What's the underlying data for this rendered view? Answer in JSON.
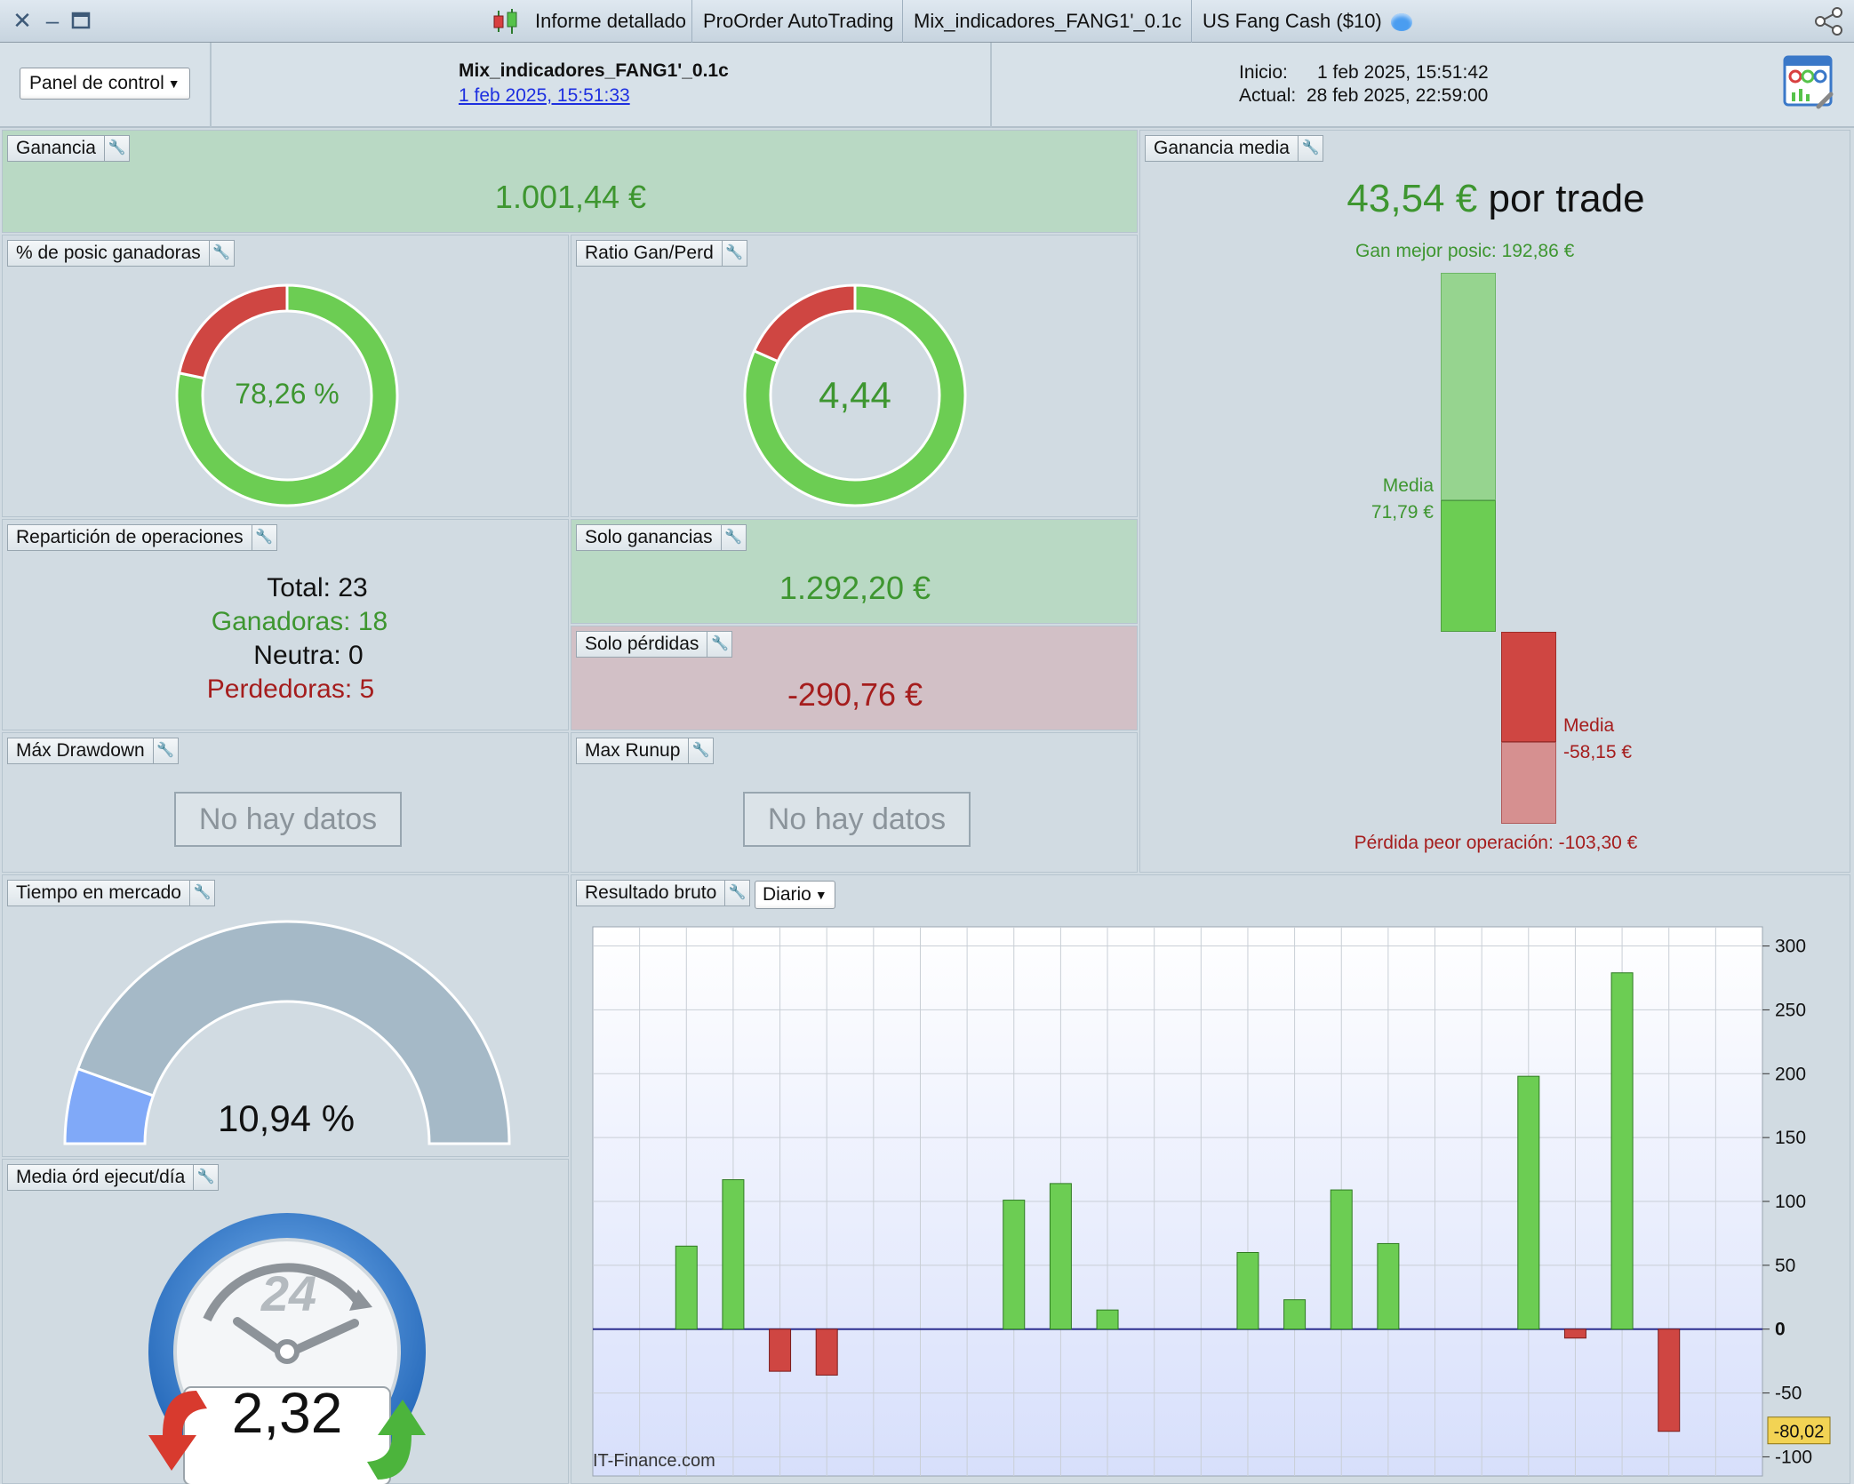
{
  "titlebar": {
    "tabs": [
      "Informe detallado",
      "ProOrder AutoTrading",
      "Mix_indicadores_FANG1'_0.1c",
      "US Fang Cash ($10)"
    ]
  },
  "header": {
    "panel_select": "Panel de control",
    "strategy_name": "Mix_indicadores_FANG1'_0.1c",
    "strategy_date": "1 feb 2025, 15:51:33",
    "inicio_label": "Inicio:",
    "inicio_value": "1 feb 2025, 15:51:42",
    "actual_label": "Actual:",
    "actual_value": "28 feb 2025, 22:59:00"
  },
  "ganancia": {
    "title": "Ganancia",
    "value": "1.001,44 €"
  },
  "pct_ganadoras": {
    "title": "% de posic ganadoras",
    "value": "78,26 %",
    "fraction": 0.7826
  },
  "ratio": {
    "title": "Ratio Gan/Perd",
    "value": "4,44",
    "fraction": 0.8163
  },
  "reparticion": {
    "title": "Repartición de operaciones",
    "total": "Total: 23",
    "ganadoras": "Ganadoras: 18",
    "neutra": "Neutra: 0",
    "perdedoras": "Perdedoras: 5"
  },
  "solo_ganancias": {
    "title": "Solo ganancias",
    "value": "1.292,20 €"
  },
  "solo_perdidas": {
    "title": "Solo pérdidas",
    "value": "-290,76 €"
  },
  "max_drawdown": {
    "title": "Máx Drawdown",
    "value": "No hay datos"
  },
  "max_runup": {
    "title": "Max Runup",
    "value": "No hay datos"
  },
  "ganancia_media": {
    "title": "Ganancia media",
    "value": "43,54 €",
    "suffix": "por trade",
    "best_label": "Gan mejor posic: 192,86 €",
    "media_pos_label": "Media",
    "media_pos_value": "71,79 €",
    "media_neg_label": "Media",
    "media_neg_value": "-58,15 €",
    "worst_label": "Pérdida peor operación: -103,30 €",
    "best": 192.86,
    "avg_win": 71.79,
    "avg_loss": -58.15,
    "worst": -103.3
  },
  "tiempo": {
    "title": "Tiempo en mercado",
    "value": "10,94 %",
    "fraction": 0.1094
  },
  "media_ord": {
    "title": "Media órd ejecut/día",
    "value": "2,32",
    "dial_label": "24"
  },
  "resultado": {
    "title": "Resultado bruto",
    "period": "Diario",
    "watermark": "IT-Finance.com",
    "last_label": "-80,02"
  },
  "chart_data": {
    "type": "bar",
    "title": "Resultado bruto",
    "ylim": [
      -115,
      315
    ],
    "yticks": [
      300,
      250,
      200,
      150,
      100,
      50,
      0,
      -50,
      -100
    ],
    "ytick_labels": [
      "300",
      "250",
      "200",
      "150",
      "100",
      "50",
      "0",
      "-50",
      "-100"
    ],
    "slots": 25,
    "bars": [
      {
        "slot": 2,
        "value": 65
      },
      {
        "slot": 3,
        "value": 117
      },
      {
        "slot": 4,
        "value": -33
      },
      {
        "slot": 5,
        "value": -36
      },
      {
        "slot": 9,
        "value": 101
      },
      {
        "slot": 10,
        "value": 114
      },
      {
        "slot": 11,
        "value": 15
      },
      {
        "slot": 14,
        "value": 60
      },
      {
        "slot": 15,
        "value": 23
      },
      {
        "slot": 16,
        "value": 109
      },
      {
        "slot": 17,
        "value": 67
      },
      {
        "slot": 20,
        "value": 198
      },
      {
        "slot": 21,
        "value": -7
      },
      {
        "slot": 22,
        "value": 279
      },
      {
        "slot": 23,
        "value": -80.02
      }
    ],
    "grid": true
  },
  "colors": {
    "win": "#6ccd53",
    "loss": "#cf4642",
    "gauge_bg": "#a5b9c7",
    "gauge_fill": "#80a9f8"
  }
}
